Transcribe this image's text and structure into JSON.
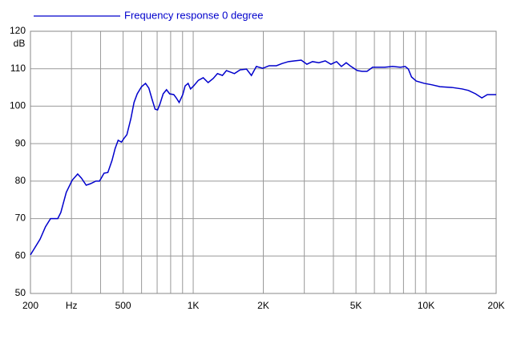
{
  "chart_data": {
    "type": "line",
    "log_x": true,
    "grid": true,
    "ylabel": "dB",
    "legend": "top-left",
    "xlim": [
      200,
      20000
    ],
    "ylim": [
      50,
      120
    ],
    "xticks": [
      200,
      {
        "value": 300,
        "label": "Hz"
      },
      500,
      {
        "value": 1000,
        "label": "1K"
      },
      {
        "value": 2000,
        "label": "2K"
      },
      {
        "value": 5000,
        "label": "5K"
      },
      {
        "value": 10000,
        "label": "10K"
      },
      {
        "value": 20000,
        "label": "20K"
      }
    ],
    "xgrid": [
      400,
      600,
      700,
      800,
      900,
      3000,
      4000,
      6000,
      7000,
      8000,
      9000
    ],
    "yticks": [
      50,
      60,
      70,
      80,
      90,
      100,
      110,
      120
    ],
    "x": [
      200,
      220,
      232,
      244,
      262,
      270,
      285,
      302,
      319,
      331,
      347,
      362,
      382,
      396,
      414,
      430,
      448,
      462,
      476,
      492,
      503,
      519,
      540,
      557,
      575,
      600,
      624,
      645,
      666,
      686,
      703,
      719,
      743,
      768,
      792,
      825,
      846,
      870,
      902,
      923,
      951,
      974,
      1004,
      1052,
      1104,
      1159,
      1219,
      1271,
      1335,
      1389,
      1446,
      1503,
      1590,
      1694,
      1778,
      1867,
      1989,
      2119,
      2277,
      2410,
      2566,
      2733,
      2910,
      3077,
      3254,
      3465,
      3690,
      3903,
      4128,
      4329,
      4540,
      4762,
      5070,
      5317,
      5576,
      5894,
      6229,
      6634,
      7176,
      7762,
      8137,
      8395,
      8662,
      9079,
      9817,
      10615,
      11478,
      12914,
      14292,
      15209,
      16313,
      17362,
      18330,
      20000
    ],
    "series": [
      {
        "name": "Frequency response 0 degree",
        "color": "#0000cc",
        "values": [
          60.3,
          64.5,
          67.8,
          70,
          70,
          71.6,
          77,
          80.2,
          81.9,
          80.8,
          78.9,
          79.3,
          80,
          80,
          82.1,
          82.3,
          85.5,
          88.7,
          90.9,
          90.4,
          91.3,
          92.4,
          96.7,
          101,
          103.3,
          105.2,
          106.1,
          104.8,
          101.8,
          99.2,
          99,
          100.5,
          103.3,
          104.4,
          103.3,
          103.1,
          102.2,
          101,
          103.1,
          105.4,
          106.1,
          104.6,
          105.4,
          106.9,
          107.6,
          106.3,
          107.4,
          108.7,
          108.2,
          109.5,
          109.1,
          108.7,
          109.7,
          109.9,
          108.2,
          110.6,
          110.1,
          110.8,
          110.8,
          111.4,
          111.9,
          112.1,
          112.3,
          111.2,
          111.9,
          111.6,
          112.1,
          111.2,
          111.9,
          110.6,
          111.6,
          110.6,
          109.5,
          109.3,
          109.3,
          110.4,
          110.4,
          110.4,
          110.6,
          110.4,
          110.6,
          109.9,
          107.8,
          106.7,
          106.1,
          105.7,
          105.2,
          105,
          104.6,
          104.2,
          103.3,
          102.2,
          103.1,
          103.1
        ]
      }
    ]
  }
}
